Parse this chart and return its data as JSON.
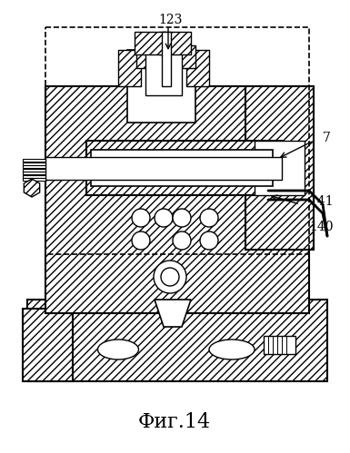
{
  "title": "Фиг.14",
  "label_123": "123",
  "label_7": "7",
  "label_141": "141",
  "label_140": "140",
  "bg_color": "#ffffff",
  "line_color": "#000000",
  "hatch_color": "#000000",
  "fig_width": 3.85,
  "fig_height": 4.99,
  "dpi": 100
}
